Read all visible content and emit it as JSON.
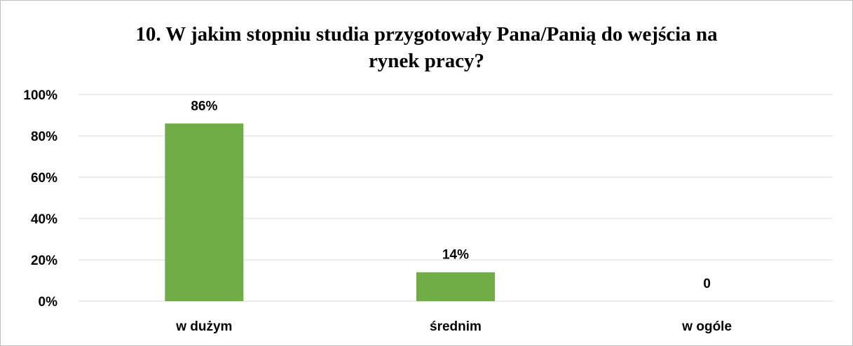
{
  "chart_data": {
    "type": "bar",
    "title_lines": [
      "10. W jakim stopniu studia przygotowały Pana/Panią do wejścia na",
      "rynek pracy?"
    ],
    "categories": [
      "w dużym",
      "średnim",
      "w ogóle"
    ],
    "values": [
      86,
      14,
      0
    ],
    "data_labels": [
      "86%",
      "14%",
      "0"
    ],
    "ylim": [
      0,
      100
    ],
    "yticks": [
      0,
      20,
      40,
      60,
      80,
      100
    ],
    "ytick_labels": [
      "0%",
      "20%",
      "40%",
      "60%",
      "80%",
      "100%"
    ],
    "grid": true,
    "legend": "none",
    "bar_color": "#70ad47",
    "grid_color": "#d9d9d9"
  }
}
